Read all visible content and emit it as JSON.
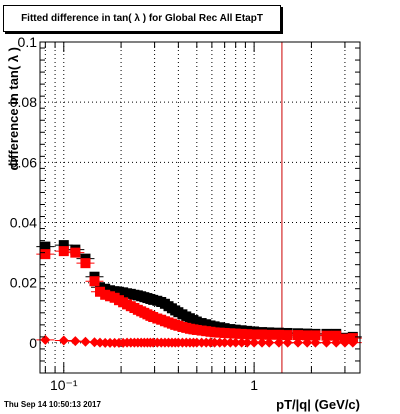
{
  "title": "Fitted difference in tan( λ ) for Global Rec All EtapT",
  "timestamp": "Thu Sep 14 10:50:13 2017",
  "chart_data": {
    "type": "scatter",
    "title": "Fitted difference in tan( λ ) for Global Rec All EtapT",
    "xlabel": "pT/|q| (GeV/c)",
    "ylabel": "difference in tan( λ )",
    "xscale": "log",
    "xlim": [
      0.075,
      3.6
    ],
    "ylim": [
      -0.01,
      0.1
    ],
    "yticks": [
      0,
      0.02,
      0.04,
      0.06,
      0.08,
      0.1
    ],
    "ytick_labels": [
      "0",
      "0.02",
      "0.04",
      "0.06",
      "0.08",
      "0.1"
    ],
    "xtick_labels": [
      {
        "x": 0.1,
        "label": "10⁻¹"
      },
      {
        "x": 1,
        "label": "1"
      }
    ],
    "grid": true,
    "vertical_line": {
      "x": 1.4,
      "color": "#cc0000"
    },
    "series": [
      {
        "color": "#000000",
        "marker": "square",
        "points": [
          [
            0.08,
            0.032
          ],
          [
            0.1,
            0.0325
          ],
          [
            0.115,
            0.031
          ],
          [
            0.13,
            0.028
          ],
          [
            0.145,
            0.022
          ],
          [
            0.155,
            0.0185
          ],
          [
            0.165,
            0.018
          ],
          [
            0.175,
            0.0175
          ],
          [
            0.185,
            0.0172
          ],
          [
            0.195,
            0.017
          ],
          [
            0.205,
            0.0168
          ],
          [
            0.215,
            0.0165
          ],
          [
            0.225,
            0.0163
          ],
          [
            0.235,
            0.016
          ],
          [
            0.245,
            0.0158
          ],
          [
            0.255,
            0.0155
          ],
          [
            0.265,
            0.0152
          ],
          [
            0.275,
            0.0149
          ],
          [
            0.285,
            0.0146
          ],
          [
            0.295,
            0.0143
          ],
          [
            0.31,
            0.014
          ],
          [
            0.325,
            0.0136
          ],
          [
            0.34,
            0.013
          ],
          [
            0.355,
            0.0122
          ],
          [
            0.37,
            0.0115
          ],
          [
            0.385,
            0.0108
          ],
          [
            0.4,
            0.0102
          ],
          [
            0.42,
            0.0095
          ],
          [
            0.44,
            0.0088
          ],
          [
            0.46,
            0.0082
          ],
          [
            0.48,
            0.0076
          ],
          [
            0.5,
            0.0071
          ],
          [
            0.53,
            0.0066
          ],
          [
            0.56,
            0.0062
          ],
          [
            0.59,
            0.0058
          ],
          [
            0.62,
            0.0055
          ],
          [
            0.66,
            0.0052
          ],
          [
            0.7,
            0.0049
          ],
          [
            0.75,
            0.0046
          ],
          [
            0.8,
            0.0044
          ],
          [
            0.86,
            0.0042
          ],
          [
            0.92,
            0.004
          ],
          [
            1.0,
            0.0038
          ],
          [
            1.1,
            0.0036
          ],
          [
            1.2,
            0.0035
          ],
          [
            1.35,
            0.0034
          ],
          [
            1.5,
            0.0033
          ],
          [
            1.7,
            0.0032
          ],
          [
            1.9,
            0.0031
          ],
          [
            2.1,
            0.003
          ],
          [
            2.4,
            0.003
          ],
          [
            2.7,
            0.003
          ],
          [
            3.0,
            0.0017
          ],
          [
            3.3,
            0.002
          ]
        ]
      },
      {
        "color": "#ff0000",
        "marker": "square",
        "points": [
          [
            0.08,
            0.0295
          ],
          [
            0.1,
            0.0305
          ],
          [
            0.115,
            0.03
          ],
          [
            0.13,
            0.0265
          ],
          [
            0.145,
            0.0205
          ],
          [
            0.155,
            0.017
          ],
          [
            0.165,
            0.016
          ],
          [
            0.175,
            0.0155
          ],
          [
            0.185,
            0.015
          ],
          [
            0.195,
            0.0142
          ],
          [
            0.205,
            0.0135
          ],
          [
            0.215,
            0.0128
          ],
          [
            0.225,
            0.0122
          ],
          [
            0.235,
            0.0116
          ],
          [
            0.245,
            0.011
          ],
          [
            0.255,
            0.0105
          ],
          [
            0.265,
            0.01
          ],
          [
            0.275,
            0.0095
          ],
          [
            0.285,
            0.009
          ],
          [
            0.295,
            0.0086
          ],
          [
            0.31,
            0.0081
          ],
          [
            0.325,
            0.0077
          ],
          [
            0.34,
            0.0072
          ],
          [
            0.355,
            0.0068
          ],
          [
            0.37,
            0.0064
          ],
          [
            0.385,
            0.006
          ],
          [
            0.4,
            0.0057
          ],
          [
            0.42,
            0.0053
          ],
          [
            0.44,
            0.005
          ],
          [
            0.46,
            0.0047
          ],
          [
            0.48,
            0.0045
          ],
          [
            0.5,
            0.0043
          ],
          [
            0.53,
            0.0041
          ],
          [
            0.56,
            0.0039
          ],
          [
            0.59,
            0.0037
          ],
          [
            0.62,
            0.0035
          ],
          [
            0.66,
            0.0034
          ],
          [
            0.7,
            0.0033
          ],
          [
            0.75,
            0.0032
          ],
          [
            0.8,
            0.0031
          ],
          [
            0.86,
            0.003
          ],
          [
            0.92,
            0.0029
          ],
          [
            1.0,
            0.0028
          ],
          [
            1.1,
            0.0028
          ],
          [
            1.2,
            0.0027
          ],
          [
            1.35,
            0.0027
          ],
          [
            1.5,
            0.0026
          ],
          [
            1.7,
            0.0026
          ],
          [
            1.9,
            0.0025
          ],
          [
            2.1,
            0.0025
          ],
          [
            2.4,
            0.0024
          ],
          [
            2.7,
            0.0024
          ],
          [
            3.0,
            0.0014
          ],
          [
            3.3,
            0.0016
          ]
        ]
      },
      {
        "color": "#ff0000",
        "marker": "diamond",
        "points": [
          [
            0.08,
            0.001
          ],
          [
            0.1,
            0.0008
          ],
          [
            0.115,
            0.0006
          ],
          [
            0.13,
            0.0004
          ],
          [
            0.145,
            0.0002
          ],
          [
            0.155,
            0.0001
          ],
          [
            0.165,
            0.0
          ],
          [
            0.175,
            0.0
          ],
          [
            0.185,
            0.0
          ],
          [
            0.195,
            0.0
          ],
          [
            0.205,
            0.0
          ],
          [
            0.215,
            0.0001
          ],
          [
            0.225,
            0.0001
          ],
          [
            0.235,
            0.0001
          ],
          [
            0.245,
            0.0001
          ],
          [
            0.255,
            0.0001
          ],
          [
            0.265,
            0.0001
          ],
          [
            0.275,
            0.0001
          ],
          [
            0.285,
            0.0001
          ],
          [
            0.295,
            0.0001
          ],
          [
            0.31,
            0.0001
          ],
          [
            0.325,
            0.0001
          ],
          [
            0.34,
            0.0001
          ],
          [
            0.355,
            0.0001
          ],
          [
            0.37,
            0.0001
          ],
          [
            0.385,
            0.0001
          ],
          [
            0.4,
            0.0001
          ],
          [
            0.42,
            0.0001
          ],
          [
            0.44,
            0.0001
          ],
          [
            0.46,
            0.0001
          ],
          [
            0.48,
            0.0001
          ],
          [
            0.5,
            0.0001
          ],
          [
            0.53,
            0.0001
          ],
          [
            0.56,
            0.0001
          ],
          [
            0.59,
            0.0001
          ],
          [
            0.62,
            0.0001
          ],
          [
            0.66,
            0.0001
          ],
          [
            0.7,
            0.0001
          ],
          [
            0.75,
            0.0001
          ],
          [
            0.8,
            0.0001
          ],
          [
            0.86,
            0.0001
          ],
          [
            0.92,
            0.0001
          ],
          [
            1.0,
            0.0001
          ],
          [
            1.1,
            0.0001
          ],
          [
            1.2,
            0.0001
          ],
          [
            1.35,
            0.0001
          ],
          [
            1.5,
            0.0001
          ],
          [
            1.7,
            0.0001
          ],
          [
            1.9,
            0.0001
          ],
          [
            2.1,
            0.0001
          ],
          [
            2.4,
            0.0001
          ],
          [
            2.7,
            0.0001
          ],
          [
            3.0,
            0.0001
          ],
          [
            3.3,
            0.0001
          ]
        ]
      }
    ]
  }
}
